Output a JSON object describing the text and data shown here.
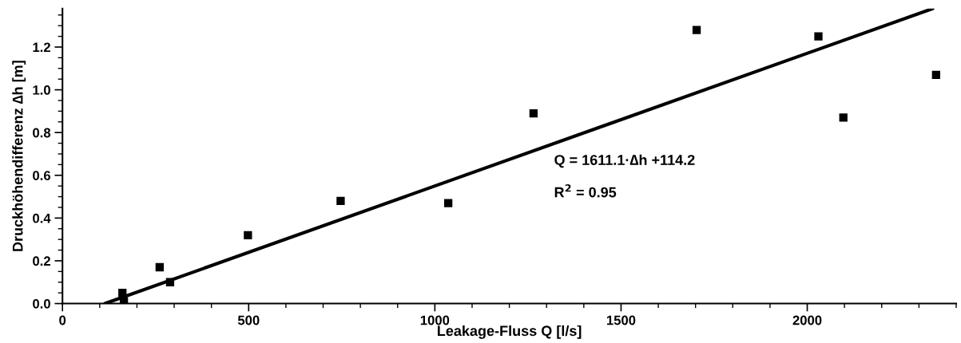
{
  "chart_data": {
    "type": "scatter",
    "xlabel": "Leakage-Fluss Q [l/s]",
    "ylabel": "Druckhöhendifferenz ∆h [m]",
    "xlim": [
      0,
      2400
    ],
    "xticks": [
      0,
      500,
      1000,
      1500,
      2000
    ],
    "ylim": [
      0,
      1.38
    ],
    "yticks": [
      {
        "value": 0,
        "label": "0.0"
      },
      0.2,
      0.4,
      0.6,
      0.8,
      {
        "value": 1,
        "label": "1.0"
      },
      1.2
    ],
    "grid": false,
    "legend": false,
    "series": [
      {
        "marker": "square",
        "color": "#000000",
        "x": [
          161,
          165,
          261,
          289,
          498,
          747,
          1036,
          1265,
          1703,
          2030,
          2097,
          2346
        ],
        "values": [
          0.05,
          0.01,
          0.17,
          0.1,
          0.32,
          0.48,
          0.47,
          0.89,
          1.28,
          1.25,
          0.87,
          1.07
        ]
      },
      {
        "type": "line",
        "marker": "none",
        "color": "#000000",
        "x": [
          114.2,
          2337
        ],
        "values": [
          0,
          1.38
        ]
      }
    ],
    "annotations": [
      "Q = 1611.1·∆h +114.2",
      "R$^{2}$ = 0.95"
    ]
  }
}
